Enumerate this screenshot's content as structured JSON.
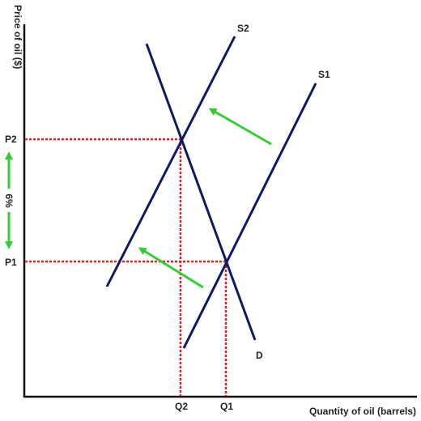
{
  "diagram": {
    "x_axis_label": "Quantity of oil (barrels)",
    "y_axis_label": "Price of oil ($)",
    "curves": {
      "s1": "S1",
      "s2": "S2",
      "d": "D"
    },
    "price_marks": {
      "p1": "P1",
      "p2": "P2"
    },
    "quantity_marks": {
      "q1": "Q1",
      "q2": "Q2"
    },
    "change_label": "6%",
    "colors": {
      "curve": "#0d1a66",
      "guide": "#e02020",
      "arrow": "#33cc33",
      "axis": "#111111"
    }
  }
}
